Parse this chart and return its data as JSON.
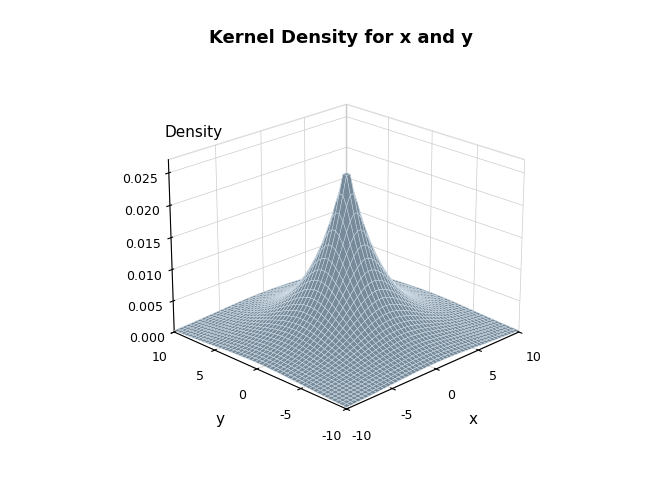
{
  "title": "Kernel Density for x and y",
  "xlabel": "x",
  "ylabel": "y",
  "zlabel": "Density",
  "x_range": [
    -10,
    10
  ],
  "y_range": [
    -10,
    10
  ],
  "zlim": [
    0,
    0.027
  ],
  "z_ticks": [
    0.0,
    0.005,
    0.01,
    0.015,
    0.02,
    0.025
  ],
  "surface_color": "#9ab4c8",
  "surface_alpha": 1.0,
  "linewidth": 0.3,
  "edgecolor": "#d8e4ee",
  "background_color": "#ffffff",
  "mu_x": 0.0,
  "mu_y": 0.0,
  "sigma_x": 3.0,
  "sigma_y": 3.0,
  "laplace_scale": 3.0,
  "grid_n": 50,
  "elev": 22,
  "azim": 225,
  "title_fontsize": 13,
  "label_fontsize": 11,
  "tick_fontsize": 9
}
